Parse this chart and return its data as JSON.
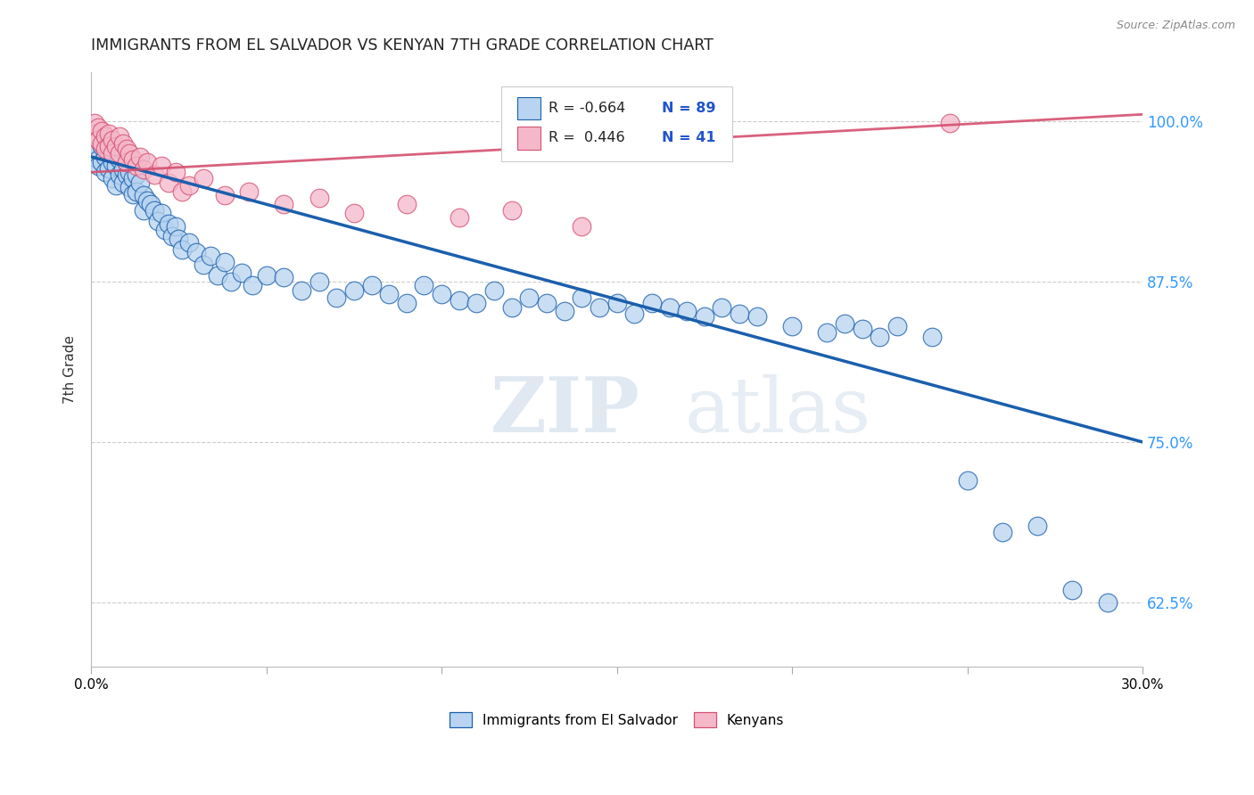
{
  "title": "IMMIGRANTS FROM EL SALVADOR VS KENYAN 7TH GRADE CORRELATION CHART",
  "source": "Source: ZipAtlas.com",
  "ylabel": "7th Grade",
  "ytick_labels": [
    "100.0%",
    "87.5%",
    "75.0%",
    "62.5%"
  ],
  "ytick_values": [
    1.0,
    0.875,
    0.75,
    0.625
  ],
  "xmin": 0.0,
  "xmax": 0.3,
  "ymin": 0.575,
  "ymax": 1.038,
  "legend_r_blue": "-0.664",
  "legend_n_blue": "89",
  "legend_r_pink": "0.446",
  "legend_n_pink": "41",
  "blue_fill": "#b8d4f0",
  "pink_fill": "#f5b8cb",
  "trendline_blue": "#1a5fad",
  "trendline_pink": "#d45070",
  "watermark_zip": "ZIP",
  "watermark_atlas": "atlas",
  "blue_scatter_x": [
    0.001,
    0.002,
    0.002,
    0.003,
    0.003,
    0.004,
    0.004,
    0.005,
    0.005,
    0.006,
    0.006,
    0.007,
    0.007,
    0.008,
    0.008,
    0.009,
    0.009,
    0.01,
    0.01,
    0.011,
    0.011,
    0.012,
    0.012,
    0.013,
    0.013,
    0.014,
    0.015,
    0.015,
    0.016,
    0.017,
    0.018,
    0.019,
    0.02,
    0.021,
    0.022,
    0.023,
    0.024,
    0.025,
    0.026,
    0.028,
    0.03,
    0.032,
    0.034,
    0.036,
    0.038,
    0.04,
    0.043,
    0.046,
    0.05,
    0.055,
    0.06,
    0.065,
    0.07,
    0.075,
    0.08,
    0.085,
    0.09,
    0.095,
    0.1,
    0.105,
    0.11,
    0.115,
    0.12,
    0.125,
    0.13,
    0.135,
    0.14,
    0.145,
    0.15,
    0.155,
    0.16,
    0.165,
    0.17,
    0.175,
    0.18,
    0.185,
    0.19,
    0.2,
    0.21,
    0.215,
    0.22,
    0.225,
    0.23,
    0.24,
    0.25,
    0.26,
    0.27,
    0.28,
    0.29
  ],
  "blue_scatter_y": [
    0.975,
    0.97,
    0.965,
    0.98,
    0.968,
    0.972,
    0.96,
    0.975,
    0.963,
    0.968,
    0.955,
    0.965,
    0.95,
    0.97,
    0.958,
    0.962,
    0.952,
    0.968,
    0.958,
    0.96,
    0.948,
    0.955,
    0.943,
    0.958,
    0.945,
    0.952,
    0.942,
    0.93,
    0.938,
    0.935,
    0.93,
    0.922,
    0.928,
    0.915,
    0.92,
    0.91,
    0.918,
    0.908,
    0.9,
    0.905,
    0.898,
    0.888,
    0.895,
    0.88,
    0.89,
    0.875,
    0.882,
    0.872,
    0.88,
    0.878,
    0.868,
    0.875,
    0.862,
    0.868,
    0.872,
    0.865,
    0.858,
    0.872,
    0.865,
    0.86,
    0.858,
    0.868,
    0.855,
    0.862,
    0.858,
    0.852,
    0.862,
    0.855,
    0.858,
    0.85,
    0.858,
    0.855,
    0.852,
    0.848,
    0.855,
    0.85,
    0.848,
    0.84,
    0.835,
    0.842,
    0.838,
    0.832,
    0.84,
    0.832,
    0.72,
    0.68,
    0.685,
    0.635,
    0.625
  ],
  "pink_scatter_x": [
    0.001,
    0.001,
    0.002,
    0.002,
    0.003,
    0.003,
    0.004,
    0.004,
    0.005,
    0.005,
    0.006,
    0.006,
    0.007,
    0.008,
    0.008,
    0.009,
    0.01,
    0.01,
    0.011,
    0.012,
    0.013,
    0.014,
    0.015,
    0.016,
    0.018,
    0.02,
    0.022,
    0.024,
    0.026,
    0.028,
    0.032,
    0.038,
    0.045,
    0.055,
    0.065,
    0.075,
    0.09,
    0.105,
    0.12,
    0.14,
    0.245
  ],
  "pink_scatter_y": [
    0.998,
    0.99,
    0.995,
    0.985,
    0.992,
    0.982,
    0.988,
    0.978,
    0.99,
    0.98,
    0.985,
    0.975,
    0.98,
    0.988,
    0.975,
    0.982,
    0.978,
    0.968,
    0.975,
    0.97,
    0.965,
    0.972,
    0.962,
    0.968,
    0.958,
    0.965,
    0.952,
    0.96,
    0.945,
    0.95,
    0.955,
    0.942,
    0.945,
    0.935,
    0.94,
    0.928,
    0.935,
    0.925,
    0.93,
    0.918,
    0.998
  ]
}
